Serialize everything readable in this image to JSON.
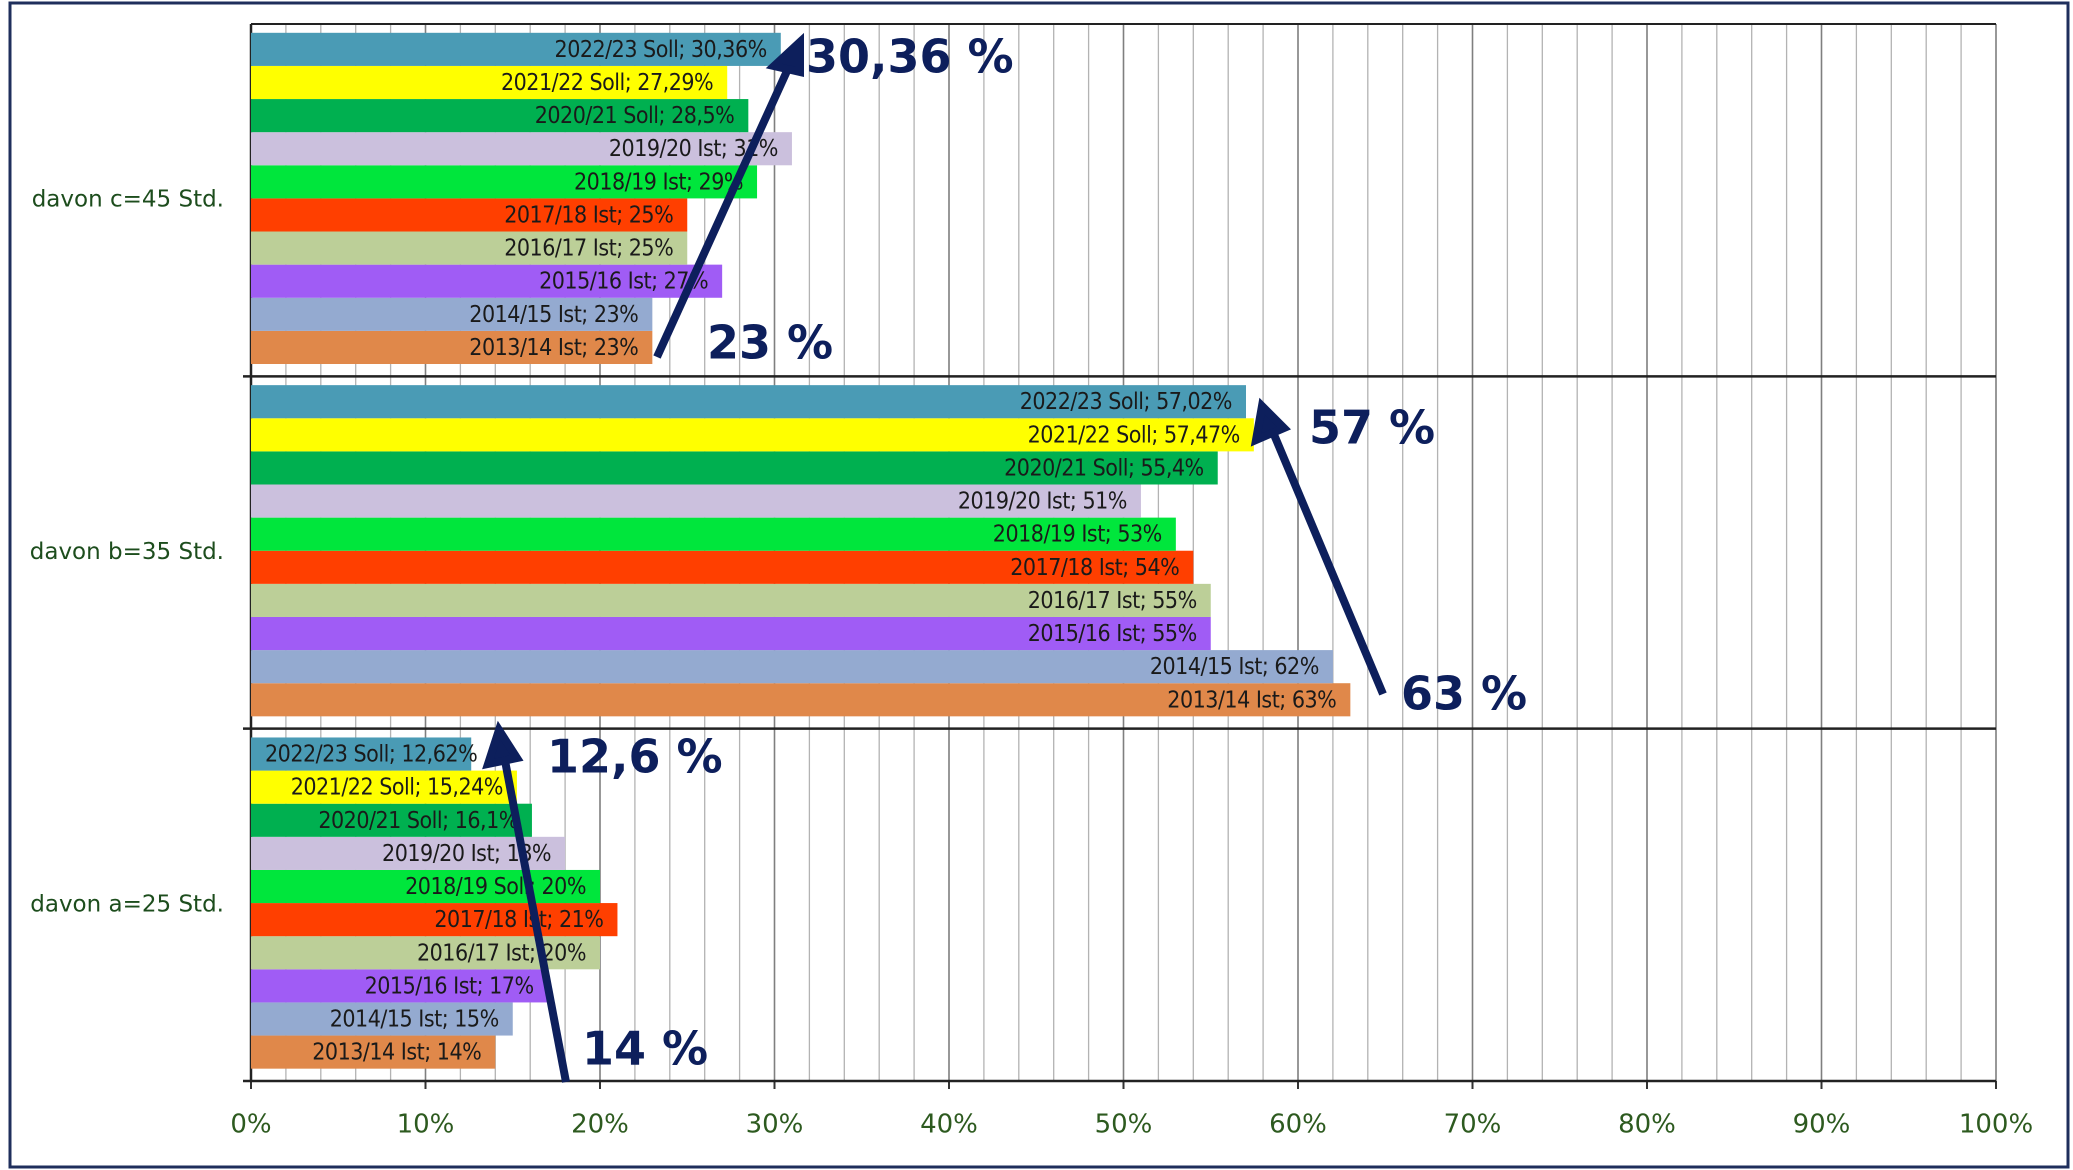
{
  "chart_data": {
    "type": "hbar",
    "categories": [
      "davon a=25 Std.",
      "davon b=35 Std.",
      "davon c=45 Std."
    ],
    "series": [
      {
        "color": "#e0884a",
        "values": [
          14,
          63,
          23
        ],
        "value_labels": [
          "2013/14 Ist; 14%",
          "2013/14 Ist; 63%",
          "2013/14 Ist; 23%"
        ]
      },
      {
        "color": "#94aad0",
        "values": [
          15,
          62,
          23
        ],
        "value_labels": [
          "2014/15 Ist; 15%",
          "2014/15 Ist; 62%",
          "2014/15 Ist; 23%"
        ]
      },
      {
        "color": "#a05cf5",
        "values": [
          17,
          55,
          27
        ],
        "value_labels": [
          "2015/16 Ist; 17%",
          "2015/16 Ist; 55%",
          "2015/16 Ist; 27%"
        ]
      },
      {
        "color": "#bccf98",
        "values": [
          20,
          55,
          25
        ],
        "value_labels": [
          "2016/17 Ist; 20%",
          "2016/17 Ist; 55%",
          "2016/17 Ist; 25%"
        ]
      },
      {
        "color": "#ff3f00",
        "values": [
          21,
          54,
          25
        ],
        "value_labels": [
          "2017/18 Ist; 21%",
          "2017/18 Ist; 54%",
          "2017/18 Ist; 25%"
        ]
      },
      {
        "color": "#00e63c",
        "values": [
          20,
          53,
          29
        ],
        "value_labels": [
          "2018/19 Soll; 20%",
          "2018/19 Ist; 53%",
          "2018/19 Ist; 29%"
        ]
      },
      {
        "color": "#cbc0dd",
        "values": [
          18,
          51,
          31
        ],
        "value_labels": [
          "2019/20 Ist; 18%",
          "2019/20 Ist; 51%",
          "2019/20 Ist; 31%"
        ]
      },
      {
        "color": "#00b050",
        "values": [
          16.1,
          55.4,
          28.5
        ],
        "value_labels": [
          "2020/21 Soll; 16,1%",
          "2020/21 Soll; 55,4%",
          "2020/21 Soll; 28,5%"
        ]
      },
      {
        "color": "#ffff00",
        "values": [
          15.24,
          57.47,
          27.29
        ],
        "value_labels": [
          "2021/22 Soll; 15,24%",
          "2021/22 Soll; 57,47%",
          "2021/22 Soll; 27,29%"
        ]
      },
      {
        "color": "#4a9bb5",
        "values": [
          12.62,
          57.02,
          30.36
        ],
        "value_labels": [
          "2022/23 Soll; 12,62%",
          "2022/23 Soll; 57,02%",
          "2022/23 Soll; 30,36%"
        ]
      }
    ],
    "xlim": [
      0,
      100
    ],
    "xticks": [
      {
        "value": 0,
        "label": "0%"
      },
      {
        "value": 10,
        "label": "10%"
      },
      {
        "value": 20,
        "label": "20%"
      },
      {
        "value": 30,
        "label": "30%"
      },
      {
        "value": 40,
        "label": "40%"
      },
      {
        "value": 50,
        "label": "50%"
      },
      {
        "value": 60,
        "label": "60%"
      },
      {
        "value": 70,
        "label": "70%"
      },
      {
        "value": 80,
        "label": "80%"
      },
      {
        "value": 90,
        "label": "90%"
      },
      {
        "value": 100,
        "label": "100%"
      }
    ],
    "xminorticks": [
      2,
      4,
      6,
      8,
      12,
      14,
      16,
      18,
      22,
      24,
      26,
      28,
      32,
      34,
      36,
      38,
      42,
      44,
      46,
      48,
      52,
      54,
      56,
      58,
      62,
      64,
      66,
      68,
      72,
      74,
      76,
      78,
      82,
      84,
      86,
      88,
      92,
      94,
      96,
      98
    ],
    "grid": true,
    "annotations": [
      "30,36 %",
      "23 %",
      "57 %",
      "63 %",
      "12,6 %",
      "14 %"
    ]
  }
}
